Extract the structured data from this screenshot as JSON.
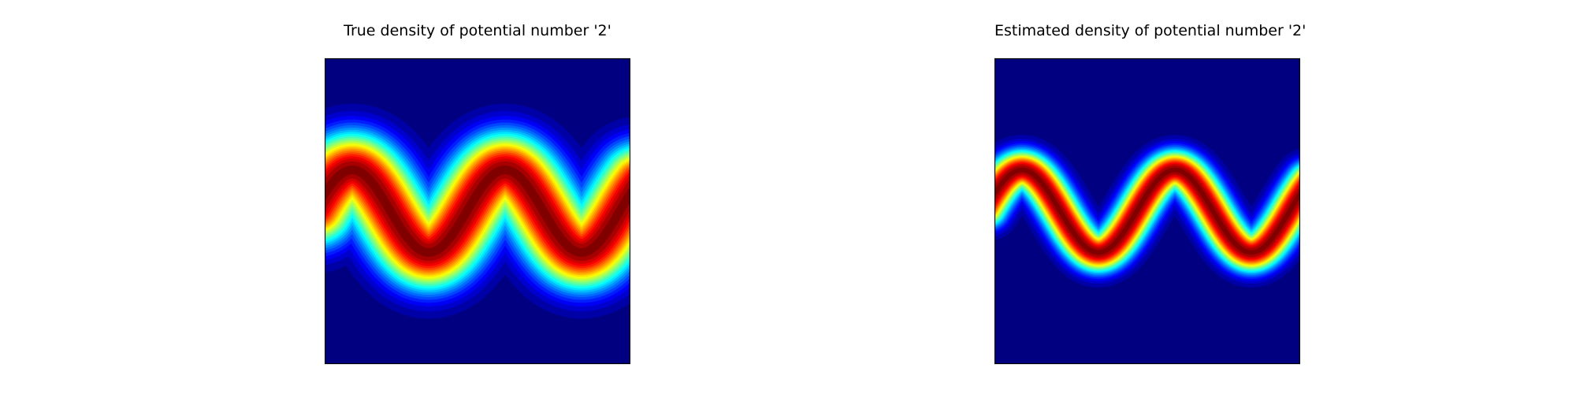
{
  "chart_data": [
    {
      "type": "heatmap",
      "title": "True density of potential number '2'",
      "colormap": "jet",
      "density": {
        "form": "sine-band",
        "periods_across": 2.0,
        "phase_deg": 25,
        "center_fraction": 0.5,
        "amplitude_fraction": 0.135,
        "band_width_fraction": 0.085
      },
      "axes_visible": false
    },
    {
      "type": "heatmap",
      "title": "Estimated density of potential number '2'",
      "colormap": "jet",
      "density": {
        "form": "sine-band",
        "periods_across": 2.0,
        "phase_deg": 25,
        "center_fraction": 0.5,
        "amplitude_fraction": 0.135,
        "band_width_fraction": 0.045
      },
      "axes_visible": false
    }
  ]
}
